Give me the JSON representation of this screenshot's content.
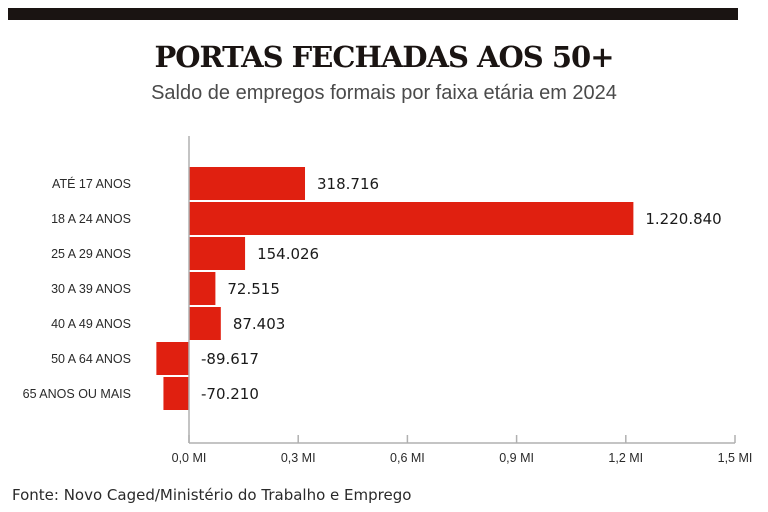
{
  "header": {
    "title": "PORTAS FECHADAS AOS 50+",
    "subtitle": "Saldo de empregos formais por faixa etária em 2024"
  },
  "footer": {
    "source": "Fonte: Novo Caged/Ministério do Trabalho e Emprego"
  },
  "colors": {
    "bar": "#e02010",
    "top_bar": "#1a1412",
    "axis": "#b0b0b0"
  },
  "chart_data": {
    "type": "bar",
    "orientation": "horizontal",
    "title": "PORTAS FECHADAS AOS 50+",
    "subtitle": "Saldo de empregos formais por faixa etária em 2024",
    "xlabel": "",
    "ylabel": "",
    "categories": [
      "ATÉ 17 ANOS",
      "18 A 24 ANOS",
      "25 A 29 ANOS",
      "30 A 39 ANOS",
      "40 A 49 ANOS",
      "50 A 64 ANOS",
      "65 ANOS OU MAIS"
    ],
    "values": [
      318716,
      1220840,
      154026,
      72515,
      87403,
      -89617,
      -70210
    ],
    "value_labels": [
      "318.716",
      "1.220.840",
      "154.026",
      "72.515",
      "87.403",
      "-89.617",
      "-70.210"
    ],
    "xlim": [
      0,
      1500000
    ],
    "xticks": [
      0,
      300000,
      600000,
      900000,
      1200000,
      1500000
    ],
    "xtick_labels": [
      "0,0 MI",
      "0,3 MI",
      "0,6 MI",
      "0,9 MI",
      "1,2 MI",
      "1,5 MI"
    ],
    "grid": false,
    "legend": "none"
  }
}
